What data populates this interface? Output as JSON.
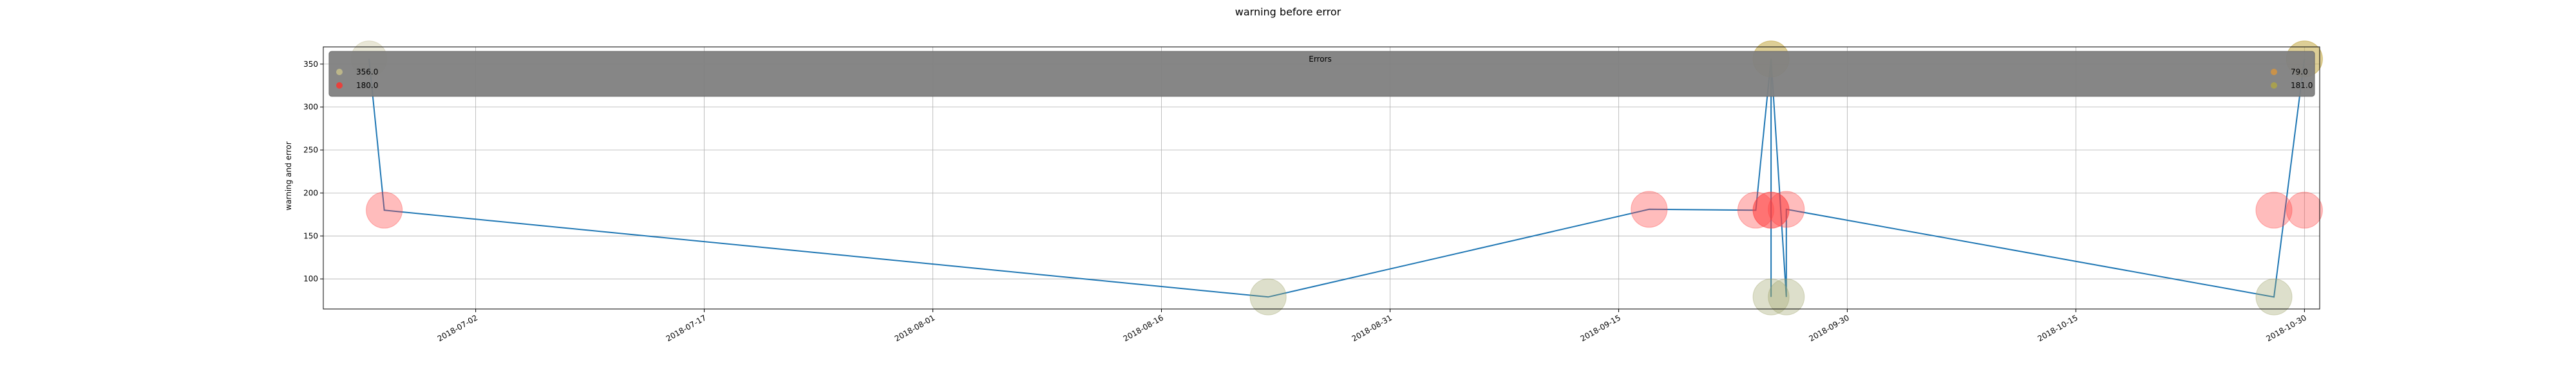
{
  "chart_data": {
    "type": "scatter",
    "title": "warning before error",
    "xlabel": "",
    "ylabel": "warning and error",
    "grid": true,
    "xlim": [
      "2018-06-22",
      "2018-10-31"
    ],
    "ylim": [
      65,
      370
    ],
    "x_ticks": [
      "2018-07-02",
      "2018-07-17",
      "2018-08-01",
      "2018-08-16",
      "2018-08-31",
      "2018-09-15",
      "2018-09-30",
      "2018-10-15",
      "2018-10-30"
    ],
    "y_ticks": [
      100,
      150,
      200,
      250,
      300,
      350
    ],
    "legend": {
      "title": "Errors",
      "placement": "top",
      "entries": [
        {
          "label": "356.0",
          "color": "#bcb68a"
        },
        {
          "label": "180.0",
          "color": "#e8413c"
        },
        {
          "label": "79.0",
          "color": "#c9924a"
        },
        {
          "label": "181.0",
          "color": "#a8a050"
        }
      ]
    },
    "line_series": {
      "color": "#1f77b4",
      "points": [
        {
          "x": "2018-06-25",
          "y": 356
        },
        {
          "x": "2018-06-26",
          "y": 180
        },
        {
          "x": "2018-08-23",
          "y": 79
        },
        {
          "x": "2018-09-17",
          "y": 181
        },
        {
          "x": "2018-09-24",
          "y": 180
        },
        {
          "x": "2018-09-25",
          "y": 356
        },
        {
          "x": "2018-09-25",
          "y": 79
        },
        {
          "x": "2018-09-25",
          "y": 180
        },
        {
          "x": "2018-09-25",
          "y": 356
        },
        {
          "x": "2018-09-25",
          "y": 180
        },
        {
          "x": "2018-09-25",
          "y": 356
        },
        {
          "x": "2018-09-26",
          "y": 79
        },
        {
          "x": "2018-09-26",
          "y": 181
        },
        {
          "x": "2018-10-28",
          "y": 79
        },
        {
          "x": "2018-10-30",
          "y": 356
        }
      ]
    },
    "scatter_series": [
      {
        "name": "356.0",
        "color": "#bcb68a",
        "points": [
          {
            "x": "2018-06-25",
            "y": 356
          },
          {
            "x": "2018-09-25",
            "y": 356
          },
          {
            "x": "2018-10-30",
            "y": 356
          }
        ]
      },
      {
        "name": "180.0",
        "color": "#ff4040",
        "points": [
          {
            "x": "2018-06-26",
            "y": 180
          },
          {
            "x": "2018-09-17",
            "y": 181
          },
          {
            "x": "2018-09-24",
            "y": 180
          },
          {
            "x": "2018-09-25",
            "y": 180
          },
          {
            "x": "2018-09-25",
            "y": 180
          },
          {
            "x": "2018-09-26",
            "y": 181
          },
          {
            "x": "2018-10-28",
            "y": 180
          },
          {
            "x": "2018-10-30",
            "y": 180
          }
        ]
      },
      {
        "name": "79.0",
        "color": "#9ea26a",
        "points": [
          {
            "x": "2018-08-23",
            "y": 79
          },
          {
            "x": "2018-09-25",
            "y": 79
          },
          {
            "x": "2018-09-26",
            "y": 79
          },
          {
            "x": "2018-10-28",
            "y": 79
          }
        ]
      },
      {
        "name": "181.0",
        "color": "#c8a020",
        "points": [
          {
            "x": "2018-09-25",
            "y": 356
          },
          {
            "x": "2018-10-30",
            "y": 356
          }
        ]
      }
    ]
  }
}
